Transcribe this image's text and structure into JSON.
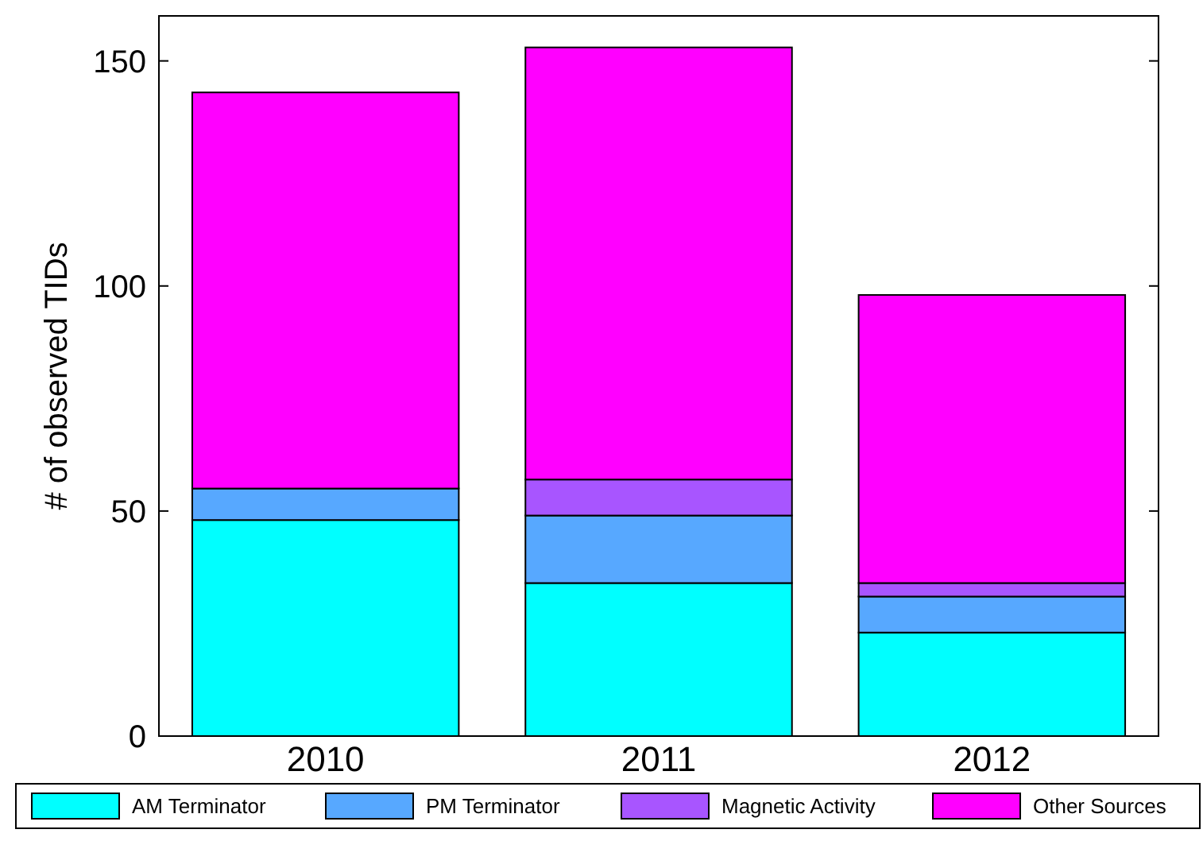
{
  "chart_data": {
    "type": "bar",
    "stacked": true,
    "categories": [
      "2010",
      "2011",
      "2012"
    ],
    "ylabel": "# of observed TIDs",
    "ylim": [
      0,
      160
    ],
    "yticks": [
      0,
      50,
      100,
      150
    ],
    "legend": "bottom",
    "series": [
      {
        "name": "AM Terminator",
        "color": "#00ffff",
        "values": [
          48,
          34,
          23
        ]
      },
      {
        "name": "PM Terminator",
        "color": "#57a8ff",
        "values": [
          7,
          15,
          8
        ]
      },
      {
        "name": "Magnetic Activity",
        "color": "#a855ff",
        "values": [
          0,
          8,
          3
        ]
      },
      {
        "name": "Other Sources",
        "color": "#ff00ff",
        "values": [
          88,
          96,
          64
        ]
      }
    ]
  }
}
